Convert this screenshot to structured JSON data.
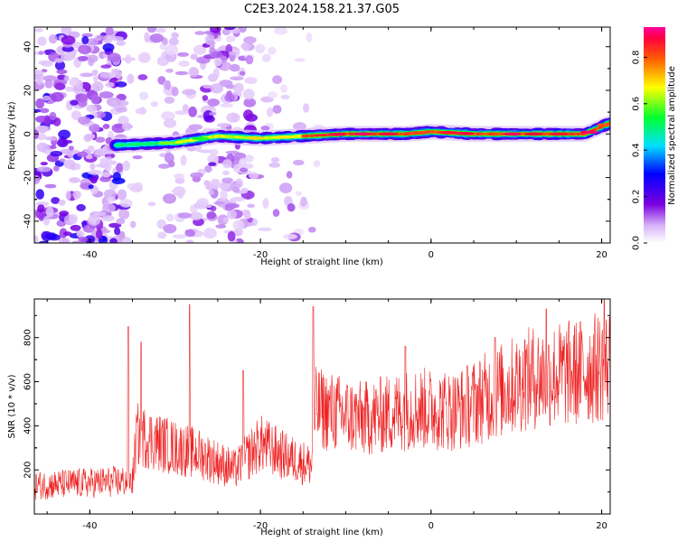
{
  "title": "C2E3.2024.158.21.37.G05",
  "colors": {
    "snr_line": "#ee2222",
    "axis": "#000000"
  },
  "chart_data": [
    {
      "type": "heatmap",
      "name": "spectrogram",
      "xlabel": "Height of straight line (km)",
      "ylabel": "Frequency (Hz)",
      "xlim": [
        -46.5,
        21
      ],
      "ylim": [
        -50,
        49
      ],
      "xticks": [
        -40,
        -20,
        0,
        20
      ],
      "yticks": [
        40,
        20,
        0,
        -20,
        -40
      ],
      "colormap": "rainbow",
      "colorbar": {
        "label": "Normalized spectral amplitude",
        "range": [
          0,
          0.93
        ],
        "ticks": [
          0.0,
          0.2,
          0.4,
          0.6,
          0.8
        ]
      },
      "ridge": {
        "description_points": [
          {
            "h": -36,
            "f": -5
          },
          {
            "h": -30,
            "f": -4
          },
          {
            "h": -25,
            "f": -1
          },
          {
            "h": -20,
            "f": -2
          },
          {
            "h": -15,
            "f": -1
          },
          {
            "h": -10,
            "f": 0
          },
          {
            "h": -3,
            "f": 0
          },
          {
            "h": 0,
            "f": 1
          },
          {
            "h": 5,
            "f": 0
          },
          {
            "h": 10,
            "f": 0
          },
          {
            "h": 18,
            "f": 0
          },
          {
            "h": 21,
            "f": 5
          }
        ],
        "peak_amplitude": 0.9
      }
    },
    {
      "type": "line",
      "name": "snr",
      "xlabel": "Height of straight line (km)",
      "ylabel": "SNR (10 * v/v)",
      "xlim": [
        -46.5,
        21
      ],
      "ylim": [
        0,
        975
      ],
      "xticks": [
        -40,
        -20,
        0,
        20
      ],
      "yticks": [
        200,
        400,
        600,
        800
      ],
      "trend": [
        {
          "h": -46.5,
          "snr": 130
        },
        {
          "h": -35,
          "snr": 150
        },
        {
          "h": -34.5,
          "snr": 360
        },
        {
          "h": -30,
          "snr": 300
        },
        {
          "h": -27,
          "snr": 270
        },
        {
          "h": -23,
          "snr": 200
        },
        {
          "h": -20,
          "snr": 320
        },
        {
          "h": -17,
          "snr": 260
        },
        {
          "h": -14,
          "snr": 220
        },
        {
          "h": -13.5,
          "snr": 480
        },
        {
          "h": -8,
          "snr": 430
        },
        {
          "h": -2,
          "snr": 480
        },
        {
          "h": 3,
          "snr": 470
        },
        {
          "h": 7,
          "snr": 540
        },
        {
          "h": 12,
          "snr": 620
        },
        {
          "h": 17,
          "snr": 640
        },
        {
          "h": 21,
          "snr": 680
        }
      ],
      "spikes": [
        {
          "h": -35.5,
          "snr": 850
        },
        {
          "h": -34,
          "snr": 780
        },
        {
          "h": -28.3,
          "snr": 950
        },
        {
          "h": -22,
          "snr": 650
        },
        {
          "h": -13.8,
          "snr": 940
        },
        {
          "h": -3,
          "snr": 760
        },
        {
          "h": 7.5,
          "snr": 800
        },
        {
          "h": 11,
          "snr": 790
        },
        {
          "h": 13.5,
          "snr": 930
        },
        {
          "h": 20.3,
          "snr": 975
        }
      ]
    }
  ]
}
